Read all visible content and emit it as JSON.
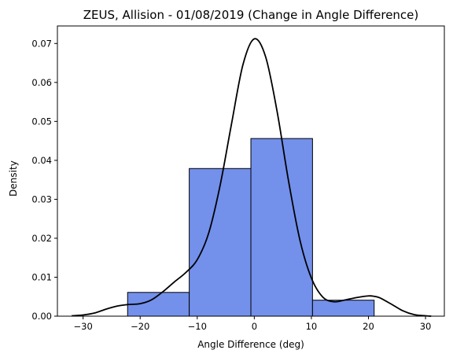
{
  "chart_data": {
    "type": "histogram",
    "title": "ZEUS, Allision - 01/08/2019 (Change in Angle Difference)",
    "xlabel": "Angle Difference (deg)",
    "ylabel": "Density",
    "xlim": [
      -34.5,
      33.3
    ],
    "ylim": [
      0,
      0.0745
    ],
    "xticks": [
      -30,
      -20,
      -10,
      0,
      10,
      20,
      30
    ],
    "xtick_labels": [
      "−30",
      "−20",
      "−10",
      "0",
      "10",
      "20",
      "30"
    ],
    "yticks": [
      0,
      0.01,
      0.02,
      0.03,
      0.04,
      0.05,
      0.06,
      0.07
    ],
    "ytick_labels": [
      "0.00",
      "0.01",
      "0.02",
      "0.03",
      "0.04",
      "0.05",
      "0.06",
      "0.07"
    ],
    "bins": [
      {
        "x0": -22.2,
        "x1": -11.4,
        "value": 0.0061
      },
      {
        "x0": -11.4,
        "x1": -0.6,
        "value": 0.0379
      },
      {
        "x0": -0.6,
        "x1": 10.2,
        "value": 0.0456
      },
      {
        "x0": 10.2,
        "x1": 21.0,
        "value": 0.0041
      }
    ],
    "kde": {
      "x": [
        -32,
        -30,
        -28,
        -26,
        -24,
        -22,
        -20,
        -18,
        -16,
        -14,
        -12,
        -10,
        -8,
        -6,
        -4,
        -2,
        0,
        2,
        4,
        6,
        8,
        10,
        12,
        14,
        16,
        18,
        20,
        21,
        22,
        24,
        26,
        28,
        30,
        31
      ],
      "y": [
        0.0001,
        0.0003,
        0.0008,
        0.0018,
        0.0026,
        0.003,
        0.0032,
        0.0042,
        0.0063,
        0.0088,
        0.0112,
        0.0145,
        0.0213,
        0.0335,
        0.0493,
        0.0645,
        0.0712,
        0.0665,
        0.0525,
        0.0347,
        0.0195,
        0.0098,
        0.0049,
        0.0037,
        0.0042,
        0.0048,
        0.0052,
        0.0051,
        0.0047,
        0.0031,
        0.0014,
        0.0004,
        0.0001,
        0.0
      ]
    },
    "colors": {
      "bar_fill": "#7390eb",
      "bar_edge": "#000000",
      "kde_line": "#000000"
    }
  }
}
